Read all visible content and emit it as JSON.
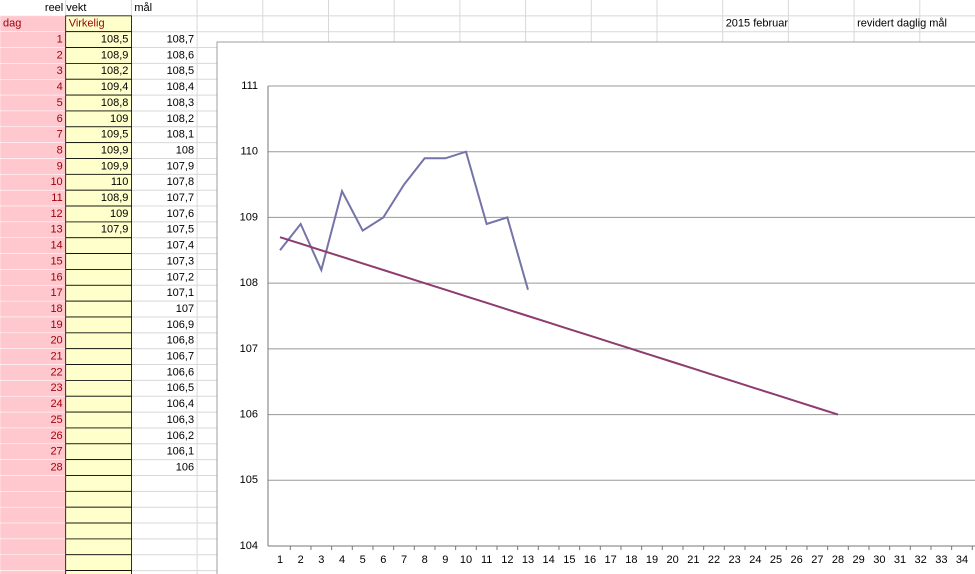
{
  "sheet": {
    "headers": {
      "reel_vekt": "reel vekt",
      "mal": "mål",
      "dag": "dag",
      "virkelig": "Virkelig",
      "month": "2015 februar",
      "revised": "revidert daglig mål"
    },
    "rows": [
      {
        "dag": "1",
        "virkelig": "108,5",
        "mal": "108,7"
      },
      {
        "dag": "2",
        "virkelig": "108,9",
        "mal": "108,6"
      },
      {
        "dag": "3",
        "virkelig": "108,2",
        "mal": "108,5"
      },
      {
        "dag": "4",
        "virkelig": "109,4",
        "mal": "108,4"
      },
      {
        "dag": "5",
        "virkelig": "108,8",
        "mal": "108,3"
      },
      {
        "dag": "6",
        "virkelig": "109",
        "mal": "108,2"
      },
      {
        "dag": "7",
        "virkelig": "109,5",
        "mal": "108,1"
      },
      {
        "dag": "8",
        "virkelig": "109,9",
        "mal": "108"
      },
      {
        "dag": "9",
        "virkelig": "109,9",
        "mal": "107,9"
      },
      {
        "dag": "10",
        "virkelig": "110",
        "mal": "107,8"
      },
      {
        "dag": "11",
        "virkelig": "108,9",
        "mal": "107,7"
      },
      {
        "dag": "12",
        "virkelig": "109",
        "mal": "107,6"
      },
      {
        "dag": "13",
        "virkelig": "107,9",
        "mal": "107,5"
      },
      {
        "dag": "14",
        "mal": "107,4"
      },
      {
        "dag": "15",
        "mal": "107,3"
      },
      {
        "dag": "16",
        "mal": "107,2"
      },
      {
        "dag": "17",
        "mal": "107,1"
      },
      {
        "dag": "18",
        "mal": "107"
      },
      {
        "dag": "19",
        "mal": "106,9"
      },
      {
        "dag": "20",
        "mal": "106,8"
      },
      {
        "dag": "21",
        "mal": "106,7"
      },
      {
        "dag": "22",
        "mal": "106,6"
      },
      {
        "dag": "23",
        "mal": "106,5"
      },
      {
        "dag": "24",
        "mal": "106,4"
      },
      {
        "dag": "25",
        "mal": "106,3"
      },
      {
        "dag": "26",
        "mal": "106,2"
      },
      {
        "dag": "27",
        "mal": "106,1"
      },
      {
        "dag": "28",
        "mal": "106"
      }
    ]
  },
  "chart_data": {
    "type": "line",
    "x": [
      1,
      2,
      3,
      4,
      5,
      6,
      7,
      8,
      9,
      10,
      11,
      12,
      13,
      14,
      15,
      16,
      17,
      18,
      19,
      20,
      21,
      22,
      23,
      24,
      25,
      26,
      27,
      28,
      29,
      30,
      31,
      32,
      33,
      34
    ],
    "xlim": [
      1,
      34
    ],
    "ylim": [
      104,
      111
    ],
    "yticks": [
      104,
      105,
      106,
      107,
      108,
      109,
      110,
      111
    ],
    "grid": true,
    "series": [
      {
        "color": "#7474a8",
        "values": [
          108.5,
          108.9,
          108.2,
          109.4,
          108.8,
          109,
          109.5,
          109.9,
          109.9,
          110,
          108.9,
          109,
          107.9,
          null,
          null,
          null,
          null,
          null,
          null,
          null,
          null,
          null,
          null,
          null,
          null,
          null,
          null,
          null,
          null,
          null,
          null,
          null,
          null,
          null
        ]
      },
      {
        "color": "#8e3b6e",
        "values": [
          108.7,
          108.6,
          108.5,
          108.4,
          108.3,
          108.2,
          108.1,
          108,
          107.9,
          107.8,
          107.7,
          107.6,
          107.5,
          107.4,
          107.3,
          107.2,
          107.1,
          107,
          106.9,
          106.8,
          106.7,
          106.6,
          106.5,
          106.4,
          106.3,
          106.2,
          106.1,
          106,
          null,
          null,
          null,
          null,
          null,
          null
        ]
      }
    ]
  }
}
